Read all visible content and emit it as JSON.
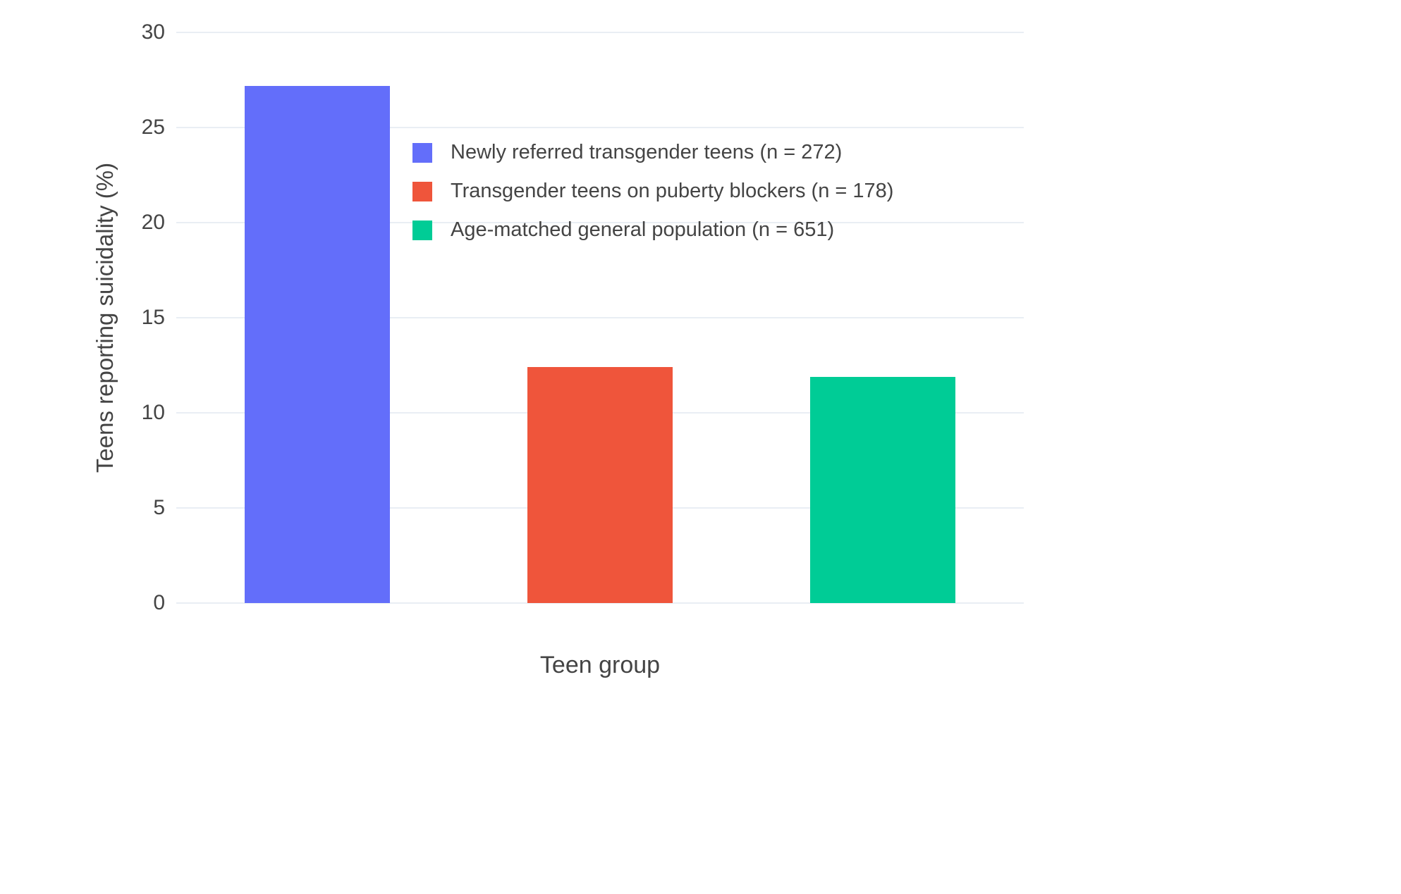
{
  "chart_data": {
    "type": "bar",
    "title": "",
    "xlabel": "Teen group",
    "ylabel": "Teens reporting suicidality (%)",
    "ylim": [
      0,
      30
    ],
    "yticks": [
      0,
      5,
      10,
      15,
      20,
      25,
      30
    ],
    "grid": true,
    "legend_position": "inside-top-center",
    "background_color": "#ffffff",
    "gridline_color": "#E9EEF4",
    "text_color": "#444444",
    "series": [
      {
        "name": "Newly referred transgender teens (n = 272)",
        "value": 27.2,
        "color": "#636EFA"
      },
      {
        "name": "Transgender teens on puberty blockers (n = 178)",
        "value": 12.4,
        "color": "#EF553B"
      },
      {
        "name": "Age-matched general population (n = 651)",
        "value": 11.9,
        "color": "#00CC96"
      }
    ]
  }
}
